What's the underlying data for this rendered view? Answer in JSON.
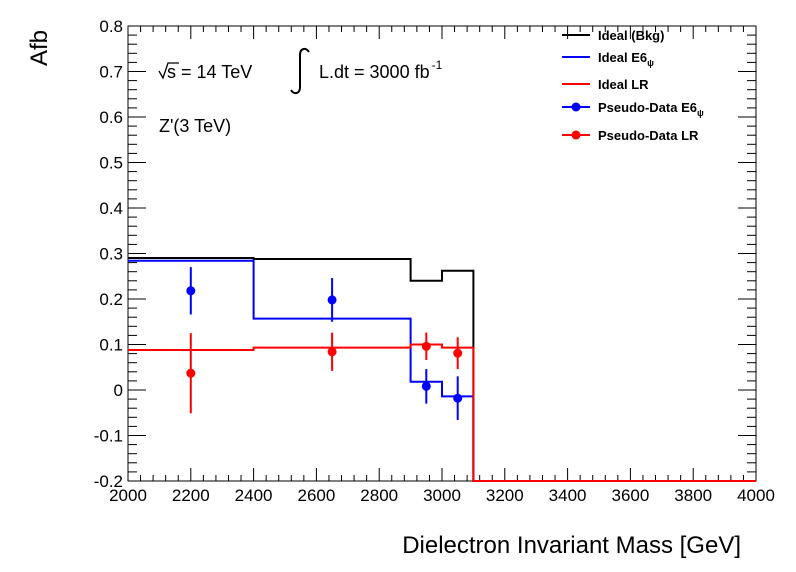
{
  "chart_data": {
    "type": "line",
    "title": "",
    "xlabel": "Dielectron Invariant Mass [GeV]",
    "ylabel": "Afb",
    "xlim": [
      2000,
      4000
    ],
    "ylim": [
      -0.2,
      0.8
    ],
    "x_ticks": [
      2000,
      2200,
      2400,
      2600,
      2800,
      3000,
      3200,
      3400,
      3600,
      3800,
      4000
    ],
    "x_tick_labels": [
      "2000",
      "2200",
      "2400",
      "2600",
      "2800",
      "3000",
      "3200",
      "3400",
      "3600",
      "3800",
      "4000"
    ],
    "y_ticks": [
      -0.2,
      -0.1,
      0,
      0.1,
      0.2,
      0.3,
      0.4,
      0.5,
      0.6,
      0.7,
      0.8
    ],
    "y_tick_labels": [
      "-0.2",
      "-0.1",
      "0",
      "0.1",
      "0.2",
      "0.3",
      "0.4",
      "0.5",
      "0.6",
      "0.7",
      "0.8"
    ],
    "grid": false,
    "legend_position": "top-right",
    "annotations": {
      "sqrt_s": "s = 14 TeV",
      "lumi_text": "L.dt = 3000 fb",
      "lumi_sup": "-1",
      "model": "Z'(3 TeV)"
    },
    "series": [
      {
        "name": "Ideal (Bkg)",
        "legend_main": "Ideal (Bkg)",
        "legend_sub": "",
        "kind": "step",
        "color": "#000000",
        "bin_edges": [
          2000,
          2400,
          2900,
          3000,
          3100,
          4000
        ],
        "values": [
          0.29,
          0.288,
          0.24,
          0.262,
          -0.2
        ]
      },
      {
        "name": "Ideal E6",
        "legend_main": "Ideal E6",
        "legend_sub": "ψ",
        "kind": "step",
        "color": "#0000ff",
        "bin_edges": [
          2000,
          2400,
          2900,
          3000,
          3100,
          4000
        ],
        "values": [
          0.284,
          0.157,
          0.018,
          -0.014,
          -0.2
        ]
      },
      {
        "name": "Ideal LR",
        "legend_main": "Ideal LR",
        "legend_sub": "",
        "kind": "step",
        "color": "#ff0000",
        "bin_edges": [
          2000,
          2400,
          2900,
          3000,
          3100,
          4000
        ],
        "values": [
          0.088,
          0.093,
          0.1,
          0.093,
          -0.2
        ]
      },
      {
        "name": "Pseudo-Data E6",
        "legend_main": "Pseudo-Data E6",
        "legend_sub": "ψ",
        "kind": "points",
        "color": "#0000ff",
        "x": [
          2200,
          2650,
          2950,
          3050
        ],
        "y": [
          0.218,
          0.198,
          0.008,
          -0.018
        ],
        "yerr": [
          0.052,
          0.048,
          0.038,
          0.048
        ]
      },
      {
        "name": "Pseudo-Data LR",
        "legend_main": "Pseudo-Data LR",
        "legend_sub": "",
        "kind": "points",
        "color": "#ff0000",
        "x": [
          2200,
          2650,
          2950,
          3050
        ],
        "y": [
          0.037,
          0.084,
          0.096,
          0.081
        ],
        "yerr": [
          0.088,
          0.042,
          0.03,
          0.035
        ]
      }
    ]
  }
}
